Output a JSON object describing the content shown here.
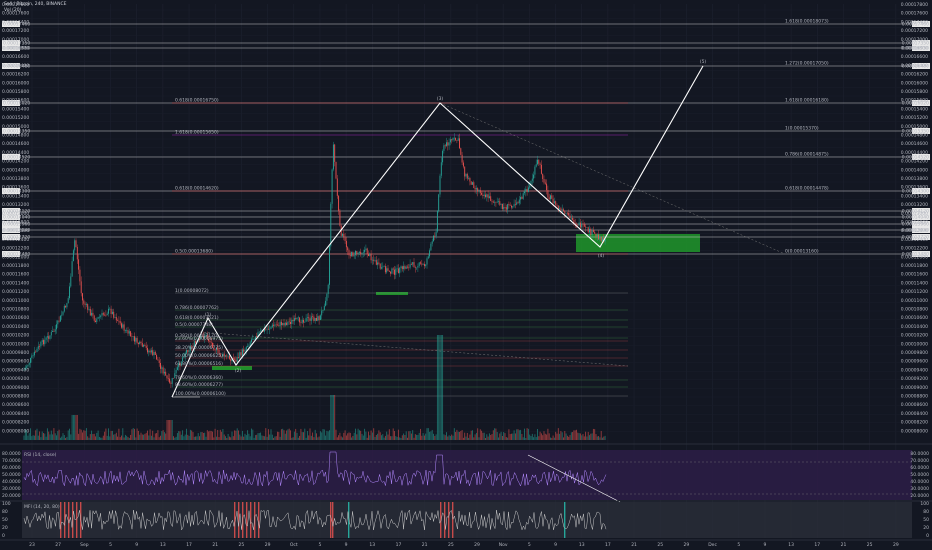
{
  "header": {
    "symbol_line": "Sell / Bitcoin, 240, BINANCE",
    "volume_line": "Vol (20)"
  },
  "rsi_label": "RSI (14, close)",
  "mfi_label": "MFI (14, 20, 80)",
  "colors": {
    "background": "#131722",
    "up": "#26a69a",
    "down": "#ef5350",
    "wave": "#ffffff",
    "zone": "#1f8f2a",
    "rsi_band": "#2b1d45",
    "mfi_band": "#2a2e39",
    "hline": "#c8c8c8",
    "fib_upper_red": "#e05050",
    "fib_upper_purple": "#9c27b0",
    "fib_green": "#4caf50"
  },
  "wave_labels": [
    "(1)",
    "(2)",
    "(3)",
    "(4)",
    "(5)"
  ],
  "chart_data": {
    "type": "candlestick",
    "title": "",
    "x_tick_labels": [
      "23",
      "27",
      "Sep",
      "5",
      "9",
      "13",
      "17",
      "21",
      "25",
      "29",
      "Oct",
      "5",
      "9",
      "13",
      "17",
      "21",
      "25",
      "29",
      "Nov",
      "5",
      "9",
      "13",
      "17",
      "21",
      "25",
      "29",
      "Dec",
      "5",
      "9",
      "13",
      "17",
      "21",
      "25",
      "29"
    ],
    "right_axis_labels": [
      "0.00017800",
      "0.00017600",
      "0.00017400",
      "0.00017200",
      "0.00017000",
      "0.00016800",
      "0.00016600",
      "0.00016400",
      "0.00016200",
      "0.00016000",
      "0.00015800",
      "0.00015600",
      "0.00015400",
      "0.00015200",
      "0.00015000",
      "0.00014800",
      "0.00014600",
      "0.00014400",
      "0.00014200",
      "0.00014000",
      "0.00013800",
      "0.00013600",
      "0.00013400",
      "0.00013200",
      "0.00013000",
      "0.00012800",
      "0.00012600",
      "0.00012400",
      "0.00012200",
      "0.00012000",
      "0.00011800",
      "0.00011600",
      "0.00011400",
      "0.00011200",
      "0.00011000",
      "0.00010800",
      "0.00010600",
      "0.00010400",
      "0.00010200",
      "0.00010000",
      "0.00009800",
      "0.00009600",
      "0.00009400",
      "0.00009200",
      "0.00009000",
      "0.00008800",
      "0.00008600",
      "0.00008400",
      "0.00008200",
      "0.00008000"
    ],
    "left_axis_labels": [
      "0.00017800",
      "0.00017600",
      "0.00017400",
      "0.00017200",
      "0.00017000",
      "0.00016800",
      "0.00016600",
      "0.00016400",
      "0.00016200",
      "0.00016000",
      "0.00015800",
      "0.00015600",
      "0.00015400",
      "0.00015200",
      "0.00015000",
      "0.00014800",
      "0.00014600",
      "0.00014400",
      "0.00014200",
      "0.00014000",
      "0.00013800",
      "0.00013600",
      "0.00013400",
      "0.00013200",
      "0.00013000",
      "0.00012800",
      "0.00012600",
      "0.00012400",
      "0.00012200",
      "0.00012000",
      "0.00011800",
      "0.00011600",
      "0.00011400",
      "0.00011200",
      "0.00011000",
      "0.00010800",
      "0.00010600",
      "0.00010400",
      "0.00010200",
      "0.00010000",
      "0.00009800",
      "0.00009600",
      "0.00009400",
      "0.00009200",
      "0.00009000",
      "0.00008800",
      "0.00008600",
      "0.00008400",
      "0.00008200",
      "0.00008000"
    ],
    "highlighted_price_labels": [
      "0.00017460",
      "0.00017350",
      "0.00016950",
      "0.00016480",
      "0.00016020",
      "0.00015350",
      "0.00014520",
      "0.00014300",
      "0.00014120",
      "0.00014040",
      "0.00013960",
      "0.00013840",
      "0.00013720",
      "0.00013480"
    ],
    "upper_fib_labels": [
      {
        "text": "0.618(0.00016750)",
        "color": "#e05050"
      },
      {
        "text": "1.618(0.00015650)",
        "color": "#9c27b0"
      },
      {
        "text": "0.618(0.00014620)",
        "color": "#e05050"
      },
      {
        "text": "0.5(0.00013680)",
        "color": "#e05050"
      }
    ],
    "right_fib_labels": [
      {
        "text": "1.618(0.00018073)",
        "color": "#9e9e9e"
      },
      {
        "text": "1.272(0.00017050)",
        "color": "#4caf50"
      },
      {
        "text": "1.618(0.00016180)",
        "color": "#4caf50"
      },
      {
        "text": "1(0.00015370)",
        "color": "#4caf50"
      },
      {
        "text": "0.786(0.00014875)",
        "color": "#4caf50"
      },
      {
        "text": "0.618(0.00014478)",
        "color": "#e05050"
      },
      {
        "text": "0(0.00013160)",
        "color": "#4caf50"
      }
    ],
    "lower_fib_labels": [
      {
        "text": "1(0.00008072)",
        "color": "#9e9e9e"
      },
      {
        "text": "0.786(0.00007762)",
        "color": "#4caf50"
      },
      {
        "text": "0.618(0.00007521)",
        "color": "#4caf50"
      },
      {
        "text": "0.5(0.00007348)",
        "color": "#4caf50"
      },
      {
        "text": "0.382(0.00007170)",
        "color": "#4caf50"
      },
      {
        "text": "23.60%(0.00006975)",
        "color": "#e05050"
      },
      {
        "text": "38.20%(0.00006775)",
        "color": "#e05050"
      },
      {
        "text": "50.00%(0.00006625)",
        "color": "#e05050"
      },
      {
        "text": "61.80%(0.00006516)",
        "color": "#e05050"
      },
      {
        "text": "78.60%(0.00006360)",
        "color": "#4caf50"
      },
      {
        "text": "88.60%(0.00006277)",
        "color": "#4caf50"
      },
      {
        "text": "100.00%(0.00006100)",
        "color": "#9e9e9e"
      }
    ],
    "rsi_levels": [
      "80.0000",
      "70.0000",
      "60.0000",
      "50.0000",
      "40.0000",
      "30.0000",
      "20.0000"
    ],
    "mfi_levels": [
      "100",
      "80",
      "50",
      "20",
      "0"
    ],
    "grid": true,
    "legend": "none"
  }
}
